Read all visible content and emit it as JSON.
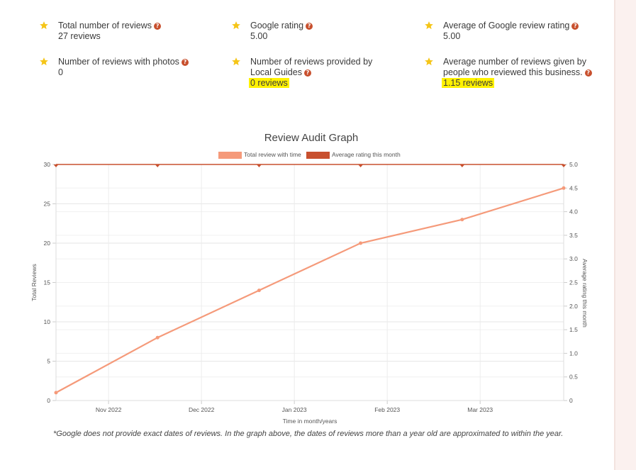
{
  "stats": [
    {
      "label": "Total number of reviews",
      "value": "27 reviews"
    },
    {
      "label": "Google rating",
      "value": "5.00"
    },
    {
      "label": "Average of Google review rating",
      "value": "5.00"
    },
    {
      "label": "Number of reviews with photos",
      "value": "0"
    },
    {
      "label": "Number of reviews provided by Local Guides",
      "value": "0 reviews"
    },
    {
      "label": "Average number of reviews given by people who reviewed this business.",
      "value": "1.15 reviews"
    }
  ],
  "icons": {
    "stat": "star-icon",
    "help": "help-icon"
  },
  "help_glyph": "?",
  "colors": {
    "star": "#f5c518",
    "help": "#c8502e",
    "line1": "#f59a7a",
    "line2": "#c8502e",
    "highlight": "#fff200"
  },
  "footnote": "*Google does not provide exact dates of reviews. In the graph above, the dates of reviews more than a year old are approximated to within the year.",
  "chart_data": {
    "type": "line",
    "title": "Review Audit Graph",
    "xlabel": "Time in month/years",
    "ylabel": "Total Reviews",
    "y2label": "Average rating this month",
    "x_ticks": [
      "Nov 2022",
      "Dec 2022",
      "Jan 2023",
      "Feb 2023",
      "Mar 2023"
    ],
    "ylim": [
      0,
      30
    ],
    "y_ticks": [
      "0",
      "5",
      "10",
      "15",
      "20",
      "25",
      "30"
    ],
    "y2lim": [
      0,
      5
    ],
    "y2_ticks": [
      "0",
      "0.5",
      "1.0",
      "1.5",
      "2.0",
      "2.5",
      "3.0",
      "3.5",
      "4.0",
      "4.5",
      "5.0"
    ],
    "legend_position": "top",
    "grid": true,
    "series": [
      {
        "name": "Total review with time",
        "axis": "left",
        "values": [
          1,
          8,
          14,
          20,
          23,
          27
        ]
      },
      {
        "name": "Average rating this month",
        "axis": "right",
        "values": [
          5,
          5,
          5,
          5,
          5,
          5
        ]
      }
    ]
  }
}
